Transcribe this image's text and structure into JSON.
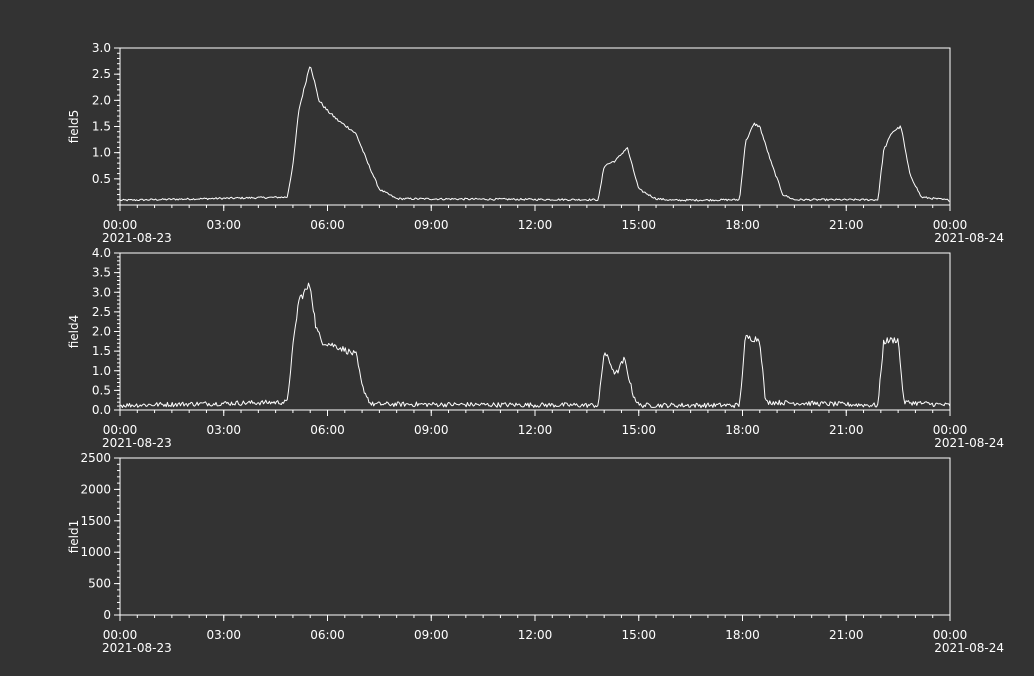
{
  "style": {
    "background": "#333333",
    "foreground": "#ffffff"
  },
  "chart_data": [
    {
      "type": "line",
      "ylabel": "field5",
      "ylim": [
        0,
        3.0
      ],
      "yticks": [
        "0.5",
        "1.0",
        "1.5",
        "2.0",
        "2.5",
        "3.0"
      ],
      "ytick_values": [
        0.5,
        1.0,
        1.5,
        2.0,
        2.5,
        3.0
      ],
      "xlim": [
        "2021-08-23 00:00",
        "2021-08-24 00:00"
      ],
      "xticks": [
        "00:00",
        "03:00",
        "06:00",
        "09:00",
        "12:00",
        "15:00",
        "18:00",
        "21:00",
        "00:00"
      ],
      "xdate_start": "2021-08-23",
      "xdate_end": "2021-08-24",
      "baseline": 0.09,
      "noise": 0.03,
      "series": [
        {
          "x": [
            "00:00",
            "04:50",
            "05:00",
            "05:10",
            "05:30",
            "05:45",
            "06:00",
            "06:20",
            "06:40",
            "06:50",
            "07:10",
            "07:30",
            "08:00",
            "13:50",
            "14:00",
            "14:20",
            "14:40",
            "15:00",
            "15:30",
            "16:00",
            "17:55",
            "18:05",
            "18:20",
            "18:30",
            "18:50",
            "19:10",
            "19:30",
            "21:55",
            "22:05",
            "22:20",
            "22:35",
            "22:50",
            "23:10",
            "24:00"
          ],
          "y": [
            0.09,
            0.15,
            0.75,
            1.8,
            2.7,
            2.0,
            1.8,
            1.6,
            1.45,
            1.35,
            0.8,
            0.3,
            0.12,
            0.1,
            0.75,
            0.85,
            1.1,
            0.3,
            0.12,
            0.09,
            0.1,
            1.2,
            1.55,
            1.5,
            0.8,
            0.2,
            0.1,
            0.1,
            1.05,
            1.4,
            1.5,
            0.6,
            0.15,
            0.09
          ]
        }
      ]
    },
    {
      "type": "line",
      "ylabel": "field4",
      "ylim": [
        0,
        4.0
      ],
      "yticks": [
        "0.0",
        "0.5",
        "1.0",
        "1.5",
        "2.0",
        "2.5",
        "3.0",
        "3.5",
        "4.0"
      ],
      "ytick_values": [
        0,
        0.5,
        1.0,
        1.5,
        2.0,
        2.5,
        3.0,
        3.5,
        4.0
      ],
      "xlim": [
        "2021-08-23 00:00",
        "2021-08-24 00:00"
      ],
      "xticks": [
        "00:00",
        "03:00",
        "06:00",
        "09:00",
        "12:00",
        "15:00",
        "18:00",
        "21:00",
        "00:00"
      ],
      "xdate_start": "2021-08-23",
      "xdate_end": "2021-08-24",
      "baseline": 0.12,
      "noise": 0.1,
      "series": [
        {
          "x": [
            "00:00",
            "04:50",
            "05:00",
            "05:10",
            "05:30",
            "05:40",
            "05:50",
            "06:20",
            "06:50",
            "07:00",
            "07:15",
            "13:50",
            "14:00",
            "14:20",
            "14:35",
            "14:50",
            "15:00",
            "17:55",
            "18:05",
            "18:30",
            "18:40",
            "21:55",
            "22:05",
            "22:30",
            "22:40",
            "24:00"
          ],
          "y": [
            0.12,
            0.2,
            1.6,
            2.8,
            3.2,
            2.1,
            1.75,
            1.6,
            1.4,
            0.6,
            0.15,
            0.12,
            1.5,
            0.9,
            1.3,
            0.4,
            0.12,
            0.12,
            1.85,
            1.8,
            0.2,
            0.12,
            1.75,
            1.8,
            0.2,
            0.12
          ]
        }
      ]
    },
    {
      "type": "line",
      "ylabel": "field1",
      "ylim": [
        0,
        2500
      ],
      "yticks": [
        "0",
        "500",
        "1000",
        "1500",
        "2000",
        "2500"
      ],
      "ytick_values": [
        0,
        500,
        1000,
        1500,
        2000,
        2500
      ],
      "xlim": [
        "2021-08-23 00:00",
        "2021-08-24 00:00"
      ],
      "xticks": [
        "00:00",
        "03:00",
        "06:00",
        "09:00",
        "12:00",
        "15:00",
        "18:00",
        "21:00",
        "00:00"
      ],
      "xdate_start": "2021-08-23",
      "xdate_end": "2021-08-24",
      "series": []
    }
  ]
}
